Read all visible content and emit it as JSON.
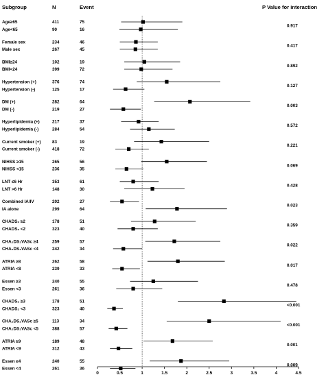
{
  "headers": {
    "subgroup": "Subgroup",
    "n": "N",
    "event": "Event",
    "p_value": "P Value for interaction"
  },
  "chart_data": {
    "type": "forest",
    "reference_line": 1,
    "reference_line_style": "dotted",
    "x_axis": {
      "min": 0,
      "max": 4.5,
      "ticks": [
        0,
        0.5,
        1,
        1.5,
        2,
        2.5,
        3,
        3.5,
        4,
        4.5
      ],
      "tick_labels": [
        "0",
        "0.5",
        "1",
        "1.5",
        "2",
        "2.5",
        "3",
        "3.5",
        "4",
        "4.5"
      ]
    },
    "groups": [
      {
        "p": "0.917",
        "rows": [
          {
            "label": "Age≥65",
            "n": "411",
            "event": "75",
            "est": 1.02,
            "lo": 0.53,
            "hi": 1.9
          },
          {
            "label": "Age<65",
            "n": "90",
            "event": "16",
            "est": 0.97,
            "lo": 0.49,
            "hi": 1.8
          }
        ]
      },
      {
        "p": "0.417",
        "rows": [
          {
            "label": "Female sex",
            "n": "234",
            "event": "46",
            "est": 0.86,
            "lo": 0.5,
            "hi": 1.35
          },
          {
            "label": "Male sex",
            "n": "267",
            "event": "45",
            "est": 0.85,
            "lo": 0.5,
            "hi": 1.35
          }
        ]
      },
      {
        "p": "0.892",
        "rows": [
          {
            "label": "BMI≥24",
            "n": "102",
            "event": "19",
            "est": 1.05,
            "lo": 0.6,
            "hi": 1.85
          },
          {
            "label": "BMI<24",
            "n": "399",
            "event": "72",
            "est": 0.98,
            "lo": 0.6,
            "hi": 1.68
          }
        ]
      },
      {
        "p": "0.127",
        "rows": [
          {
            "label": "Hypertension (+)",
            "n": "376",
            "event": "74",
            "est": 1.55,
            "lo": 0.88,
            "hi": 2.75
          },
          {
            "label": "Hypertension (-)",
            "n": "125",
            "event": "17",
            "est": 0.63,
            "lo": 0.35,
            "hi": 1.05
          }
        ]
      },
      {
        "p": "0.003",
        "rows": [
          {
            "label": "DM (+)",
            "n": "282",
            "event": "64",
            "est": 2.07,
            "lo": 1.27,
            "hi": 3.42
          },
          {
            "label": "DM (-)",
            "n": "219",
            "event": "27",
            "est": 0.58,
            "lo": 0.28,
            "hi": 0.97
          }
        ]
      },
      {
        "p": "0.572",
        "rows": [
          {
            "label": "Hyperlipidemia (+)",
            "n": "217",
            "event": "37",
            "est": 0.92,
            "lo": 0.53,
            "hi": 1.37
          },
          {
            "label": "Hyperlipidemia (-)",
            "n": "284",
            "event": "54",
            "est": 1.15,
            "lo": 0.73,
            "hi": 1.73
          }
        ]
      },
      {
        "p": "0.221",
        "rows": [
          {
            "label": "Current smoker (+)",
            "n": "83",
            "event": "19",
            "est": 1.43,
            "lo": 0.82,
            "hi": 2.5
          },
          {
            "label": "Current smoker (-)",
            "n": "418",
            "event": "72",
            "est": 0.7,
            "lo": 0.4,
            "hi": 1.15
          }
        ]
      },
      {
        "p": "0.069",
        "rows": [
          {
            "label": "NIHSS  ≥15",
            "n": "265",
            "event": "56",
            "est": 1.55,
            "lo": 0.98,
            "hi": 2.45
          },
          {
            "label": "NIHSS  <15",
            "n": "236",
            "event": "35",
            "est": 0.65,
            "lo": 0.4,
            "hi": 1.03
          }
        ]
      },
      {
        "p": "0.428",
        "rows": [
          {
            "label": "LNT ≤6 Hr",
            "n": "353",
            "event": "61",
            "est": 0.8,
            "lo": 0.5,
            "hi": 1.37
          },
          {
            "label": "LNT >6 Hr",
            "n": "148",
            "event": "30",
            "est": 1.23,
            "lo": 0.6,
            "hi": 1.95
          }
        ]
      },
      {
        "p": "0.023",
        "rows": [
          {
            "label": "Combined IA/IV",
            "n": "202",
            "event": "27",
            "est": 0.55,
            "lo": 0.28,
            "hi": 0.93
          },
          {
            "label": "IA alone",
            "n": "299",
            "event": "64",
            "est": 1.78,
            "lo": 1.08,
            "hi": 2.9
          }
        ]
      },
      {
        "p": "0.359",
        "rows": [
          {
            "label": "CHADS₂ ≥2",
            "n": "178",
            "event": "51",
            "est": 1.28,
            "lo": 0.75,
            "hi": 2.2
          },
          {
            "label": "CHADS₂ <2",
            "n": "323",
            "event": "40",
            "est": 0.8,
            "lo": 0.45,
            "hi": 1.35
          }
        ]
      },
      {
        "p": "0.022",
        "rows": [
          {
            "label": "CHA₂DS₂VASc ≥4",
            "n": "259",
            "event": "57",
            "est": 1.72,
            "lo": 1.07,
            "hi": 2.75
          },
          {
            "label": "CHA₂DS₂VASc <4",
            "n": "242",
            "event": "34",
            "est": 0.58,
            "lo": 0.35,
            "hi": 1.0
          }
        ]
      },
      {
        "p": "0.017",
        "rows": [
          {
            "label": "ATRIA ≥8",
            "n": "262",
            "event": "58",
            "est": 1.8,
            "lo": 1.12,
            "hi": 2.85
          },
          {
            "label": "ATRIA <8",
            "n": "239",
            "event": "33",
            "est": 0.55,
            "lo": 0.33,
            "hi": 0.95
          }
        ]
      },
      {
        "p": "0.478",
        "rows": [
          {
            "label": "Essen ≥3",
            "n": "240",
            "event": "55",
            "est": 1.25,
            "lo": 0.73,
            "hi": 2.25
          },
          {
            "label": "Essen <3",
            "n": "261",
            "event": "36",
            "est": 0.8,
            "lo": 0.42,
            "hi": 1.45
          }
        ]
      },
      {
        "p": "<0.001",
        "rows": [
          {
            "label": "CHADS₂ ≥3",
            "n": "178",
            "event": "51",
            "est": 2.83,
            "lo": 1.8,
            "hi": 4.45
          },
          {
            "label": "CHADS₂ <3",
            "n": "323",
            "event": "40",
            "est": 0.37,
            "lo": 0.22,
            "hi": 0.57
          }
        ]
      },
      {
        "p": "<0.001",
        "rows": [
          {
            "label": "CHA₂DS₂VASc ≥5",
            "n": "113",
            "event": "34",
            "est": 2.5,
            "lo": 1.55,
            "hi": 4.1
          },
          {
            "label": "CHA₂DS₂VASc <5",
            "n": "388",
            "event": "57",
            "est": 0.42,
            "lo": 0.25,
            "hi": 0.67
          }
        ]
      },
      {
        "p": "0.001",
        "rows": [
          {
            "label": "ATRIA ≥9",
            "n": "189",
            "event": "48",
            "est": 1.68,
            "lo": 1.03,
            "hi": 2.58
          },
          {
            "label": "ATRIA <9",
            "n": "312",
            "event": "43",
            "est": 0.47,
            "lo": 0.28,
            "hi": 0.78
          }
        ]
      },
      {
        "p": "0.009",
        "rows": [
          {
            "label": "Essen ≥4",
            "n": "240",
            "event": "55",
            "est": 1.87,
            "lo": 1.17,
            "hi": 2.95
          },
          {
            "label": "Essen <4",
            "n": "261",
            "event": "36",
            "est": 0.52,
            "lo": 0.28,
            "hi": 0.85
          }
        ]
      }
    ]
  }
}
